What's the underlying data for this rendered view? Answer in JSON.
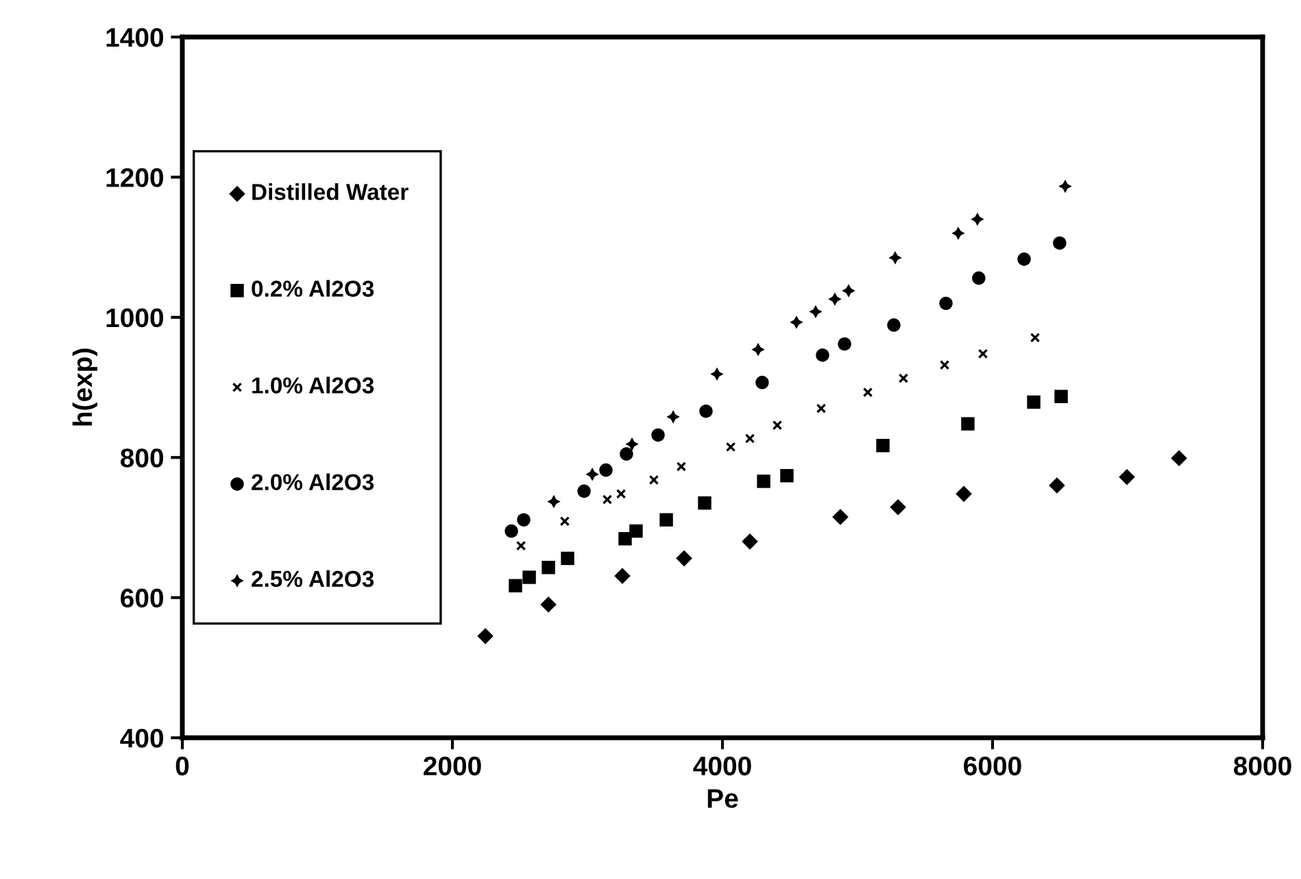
{
  "chart_data": {
    "type": "scatter",
    "xlabel": "Pe",
    "ylabel": "h(exp)",
    "xlim": [
      0,
      8000
    ],
    "xticks": [
      0,
      2000,
      4000,
      6000,
      8000
    ],
    "ylim": [
      400,
      1400
    ],
    "yticks": [
      400,
      600,
      800,
      1000,
      1200,
      1400
    ],
    "grid": false,
    "legend": "left",
    "series": [
      {
        "name": "Distilled Water",
        "color": "#000000",
        "marker": "diamond",
        "x": [
          2244,
          2711,
          3259,
          3716,
          4203,
          4873,
          5300,
          5787,
          6477,
          6995,
          7381
        ],
        "values": [
          545,
          590,
          631,
          656,
          680,
          715,
          729,
          748,
          760,
          772,
          799
        ]
      },
      {
        "name": "0.2% Al2O3",
        "color": "#000000",
        "marker": "square",
        "x": [
          2467,
          2569,
          2711,
          2853,
          3279,
          3360,
          3584,
          3868,
          4305,
          4477,
          5188,
          5817,
          6305,
          6508
        ],
        "values": [
          617,
          629,
          643,
          656,
          684,
          695,
          711,
          735,
          766,
          774,
          817,
          848,
          879,
          887
        ]
      },
      {
        "name": "1.0% Al2O3",
        "color": "#000000",
        "marker": "cross",
        "x": [
          2508,
          2832,
          3147,
          3249,
          3492,
          3695,
          4061,
          4203,
          4406,
          4731,
          5076,
          5340,
          5645,
          5929,
          6315
        ],
        "values": [
          674,
          709,
          740,
          748,
          768,
          787,
          815,
          827,
          846,
          870,
          893,
          913,
          932,
          948,
          971
        ]
      },
      {
        "name": "2.0% Al2O3",
        "color": "#000000",
        "marker": "circle",
        "x": [
          2437,
          2528,
          2975,
          3137,
          3289,
          3523,
          3878,
          4294,
          4741,
          4904,
          5269,
          5655,
          5898,
          6234,
          6497
        ],
        "values": [
          695,
          711,
          752,
          782,
          805,
          832,
          866,
          907,
          946,
          962,
          989,
          1020,
          1056,
          1083,
          1106
        ]
      },
      {
        "name": "2.5% Al2O3",
        "color": "#000000",
        "marker": "star",
        "x": [
          2751,
          3036,
          3330,
          3635,
          3959,
          4264,
          4548,
          4690,
          4832,
          4934,
          5279,
          5746,
          5888,
          6538
        ],
        "values": [
          737,
          776,
          819,
          858,
          919,
          954,
          993,
          1008,
          1026,
          1038,
          1085,
          1120,
          1140,
          1187
        ]
      }
    ]
  }
}
